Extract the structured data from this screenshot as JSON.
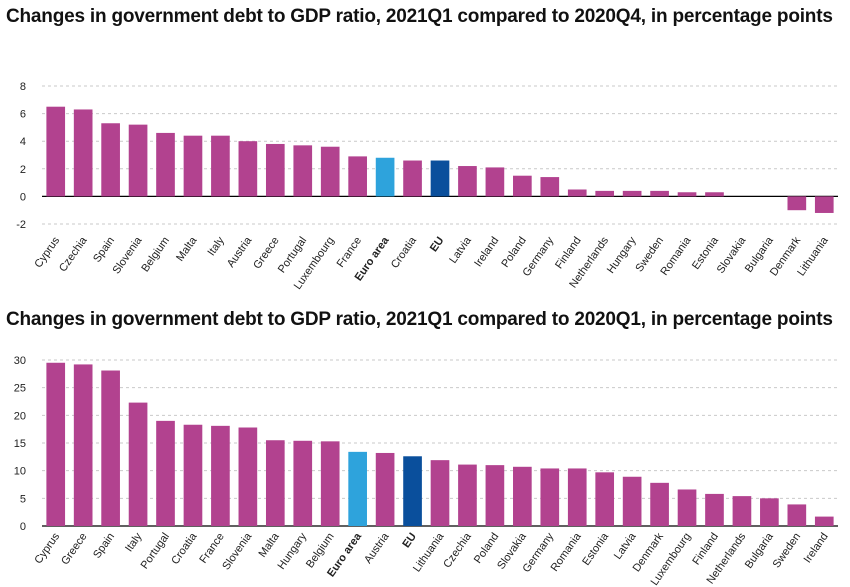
{
  "chart_data": [
    {
      "type": "bar",
      "title": "Changes in government debt to GDP ratio, 2021Q1 compared to 2020Q4, in percentage points",
      "categories": [
        "Cyprus",
        "Czechia",
        "Spain",
        "Slovenia",
        "Belgium",
        "Malta",
        "Italy",
        "Austria",
        "Greece",
        "Portugal",
        "Luxembourg",
        "France",
        "Euro area",
        "Croatia",
        "EU",
        "Latvia",
        "Ireland",
        "Poland",
        "Germany",
        "Finland",
        "Netherlands",
        "Hungary",
        "Sweden",
        "Romania",
        "Estonia",
        "Slovakia",
        "Bulgaria",
        "Denmark",
        "Lithuania"
      ],
      "values": [
        6.5,
        6.3,
        5.3,
        5.2,
        4.6,
        4.4,
        4.4,
        4.0,
        3.8,
        3.7,
        3.6,
        2.9,
        2.8,
        2.6,
        2.6,
        2.2,
        2.1,
        1.5,
        1.4,
        0.5,
        0.4,
        0.4,
        0.4,
        0.3,
        0.3,
        0.0,
        0.0,
        -1.0,
        -1.2
      ],
      "highlight": {
        "Euro area": "#2ea3dc",
        "EU": "#0a4f9c"
      },
      "bar_color": "#b2428f",
      "ylim": [
        -2,
        8
      ],
      "yticks": [
        -2,
        0,
        2,
        4,
        6,
        8
      ],
      "xlabel": "",
      "ylabel": "",
      "grid": true,
      "legend": "none"
    },
    {
      "type": "bar",
      "title": "Changes in government debt to GDP ratio, 2021Q1 compared to 2020Q1, in percentage points",
      "categories": [
        "Cyprus",
        "Greece",
        "Spain",
        "Italy",
        "Portugal",
        "Croatia",
        "France",
        "Slovenia",
        "Malta",
        "Hungary",
        "Belgium",
        "Euro area",
        "Austria",
        "EU",
        "Lithuania",
        "Czechia",
        "Poland",
        "Slovakia",
        "Germany",
        "Romania",
        "Estonia",
        "Latvia",
        "Denmark",
        "Luxembourg",
        "Finland",
        "Netherlands",
        "Bulgaria",
        "Sweden",
        "Ireland"
      ],
      "values": [
        29.5,
        29.2,
        28.1,
        22.3,
        19.0,
        18.3,
        18.1,
        17.8,
        15.5,
        15.4,
        15.3,
        13.4,
        13.2,
        12.6,
        11.9,
        11.1,
        11.0,
        10.7,
        10.4,
        10.4,
        9.7,
        8.9,
        7.8,
        6.6,
        5.8,
        5.4,
        5.0,
        3.9,
        1.7
      ],
      "highlight": {
        "Euro area": "#2ea3dc",
        "EU": "#0a4f9c"
      },
      "bar_color": "#b2428f",
      "ylim": [
        0,
        30
      ],
      "yticks": [
        0,
        5,
        10,
        15,
        20,
        25,
        30
      ],
      "xlabel": "",
      "ylabel": "",
      "grid": true,
      "legend": "none"
    }
  ]
}
